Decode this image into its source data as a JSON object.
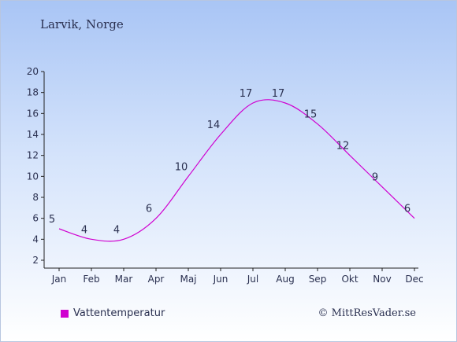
{
  "header": {
    "location": "Larvik, Norge"
  },
  "legend": {
    "label": "Vattentemperatur",
    "color": "#d000d0"
  },
  "footer": {
    "credit": "© MittResVader.se"
  },
  "chart_data": {
    "type": "line",
    "categories": [
      "Jan",
      "Feb",
      "Mar",
      "Apr",
      "Maj",
      "Jun",
      "Jul",
      "Aug",
      "Sep",
      "Okt",
      "Nov",
      "Dec"
    ],
    "series": [
      {
        "name": "Vattentemperatur",
        "values": [
          5,
          4,
          4,
          6,
          10,
          14,
          17,
          17,
          15,
          12,
          9,
          6
        ],
        "color": "#d000d0"
      }
    ],
    "title": "",
    "xlabel": "",
    "ylabel": "",
    "ylim": [
      2,
      20
    ],
    "yticks": [
      2,
      4,
      6,
      8,
      10,
      12,
      14,
      16,
      18,
      20
    ],
    "grid": false,
    "legend_position": "bottom-left"
  }
}
